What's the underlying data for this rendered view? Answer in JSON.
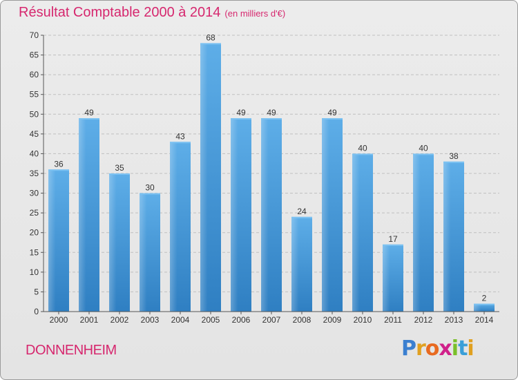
{
  "chart_data": {
    "type": "bar",
    "title": "Résultat Comptable 2000 à 2014",
    "subtitle": "(en milliers d'€)",
    "categories": [
      "2000",
      "2001",
      "2002",
      "2003",
      "2004",
      "2005",
      "2006",
      "2007",
      "2008",
      "2009",
      "2010",
      "2011",
      "2012",
      "2013",
      "2014"
    ],
    "values": [
      36,
      49,
      35,
      30,
      43,
      68,
      49,
      49,
      24,
      49,
      40,
      17,
      40,
      38,
      2
    ],
    "ylim": [
      0,
      70
    ],
    "yticks": [
      0,
      5,
      10,
      15,
      20,
      25,
      30,
      35,
      40,
      45,
      50,
      55,
      60,
      65,
      70
    ],
    "xlabel": "",
    "ylabel": "",
    "grid": true,
    "bar_color": "#4a9ad6"
  },
  "footer": {
    "city": "DONNENHEIM",
    "logo_letters": [
      "P",
      "r",
      "o",
      "x",
      "i",
      "t",
      "i"
    ],
    "logo_colors": [
      "#3a7fd0",
      "#e0a020",
      "#e86a20",
      "#d0208a",
      "#7abf2a",
      "#3a9fd8",
      "#e0a020"
    ]
  },
  "colors": {
    "title": "#d6276e",
    "grid": "#bfbfbf"
  }
}
